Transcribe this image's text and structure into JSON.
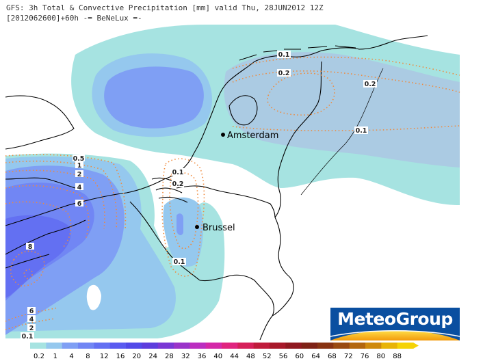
{
  "header": {
    "line1": "GFS: 3h Total & Convective Precipitation [mm] valid Thu, 28JUN2012 12Z",
    "line2": "[2012062600]+60h -= BeNeLux =-"
  },
  "cities": [
    {
      "name": "Amsterdam",
      "icon": "city-dot-icon"
    },
    {
      "name": "Brussel",
      "icon": "city-dot-icon"
    }
  ],
  "contour_labels": [
    "0.1",
    "0.2",
    "0.2",
    "0.1",
    "0.1",
    "0.2",
    "0.5",
    "1",
    "2",
    "4",
    "6",
    "8",
    "6",
    "4",
    "2",
    "0.1",
    "0.1"
  ],
  "logo": {
    "text": "MeteoGroup",
    "color": "#0a4fa0"
  },
  "legend": {
    "labels": [
      "0.2",
      "1",
      "4",
      "8",
      "12",
      "16",
      "20",
      "24",
      "28",
      "32",
      "36",
      "40",
      "44",
      "48",
      "52",
      "56",
      "60",
      "64",
      "68",
      "72",
      "76",
      "80",
      "88"
    ],
    "colors": [
      "#a6e3e1",
      "#95c8ee",
      "#7f9ff4",
      "#7186f4",
      "#6370f2",
      "#5a5bf0",
      "#524ae8",
      "#5d3ddd",
      "#7a37d5",
      "#9a33c9",
      "#bb2ec0",
      "#d428a8",
      "#e0247f",
      "#d6205a",
      "#c01c3c",
      "#a8182a",
      "#901820",
      "#7e2216",
      "#883312",
      "#9a4a10",
      "#b3670e",
      "#cf8a0c",
      "#e8b407",
      "#f5d306"
    ]
  }
}
